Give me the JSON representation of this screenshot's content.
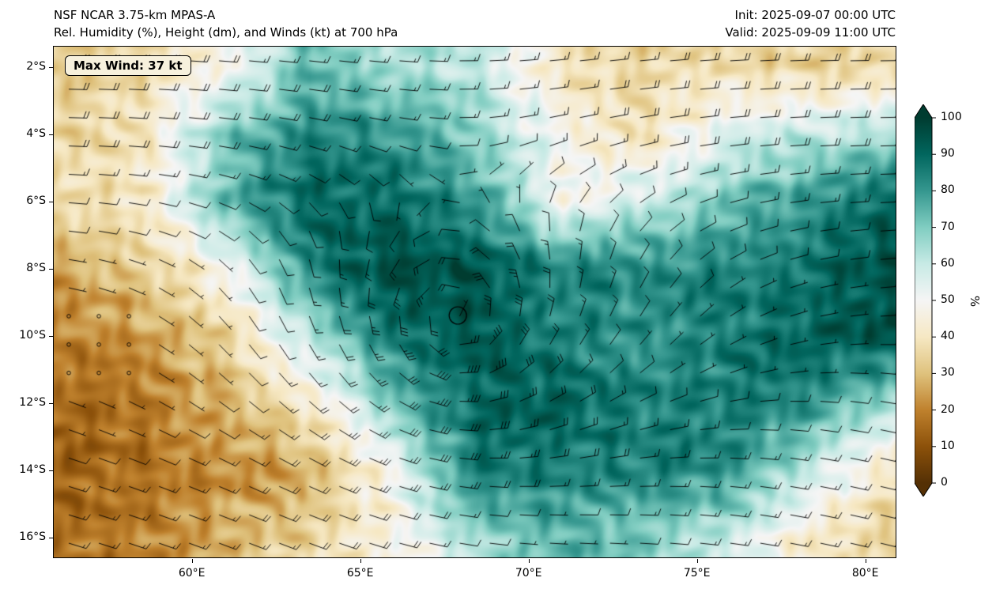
{
  "header": {
    "title_line1": "NSF NCAR 3.75-km MPAS-A",
    "title_line2": "Rel. Humidity (%), Height (dm), and Winds (kt) at 700 hPa",
    "init": "Init: 2025-09-07 00:00 UTC",
    "valid": "Valid: 2025-09-09 11:00 UTC"
  },
  "map": {
    "max_wind_label": "Max Wind: 37 kt",
    "lon_range": [
      55.9,
      80.9
    ],
    "lat_range": [
      -1.4,
      -16.6
    ],
    "x_ticks": [
      {
        "lon": 60,
        "label": "60°E"
      },
      {
        "lon": 65,
        "label": "65°E"
      },
      {
        "lon": 70,
        "label": "70°E"
      },
      {
        "lon": 75,
        "label": "75°E"
      },
      {
        "lon": 80,
        "label": "80°E"
      }
    ],
    "y_ticks": [
      {
        "lat": -2,
        "label": "2°S"
      },
      {
        "lat": -4,
        "label": "4°S"
      },
      {
        "lat": -6,
        "label": "6°S"
      },
      {
        "lat": -8,
        "label": "8°S"
      },
      {
        "lat": -10,
        "label": "10°S"
      },
      {
        "lat": -12,
        "label": "12°S"
      },
      {
        "lat": -14,
        "label": "14°S"
      },
      {
        "lat": -16,
        "label": "16°S"
      }
    ]
  },
  "colorbar": {
    "label": "%",
    "ticks": [
      0,
      10,
      20,
      30,
      40,
      50,
      60,
      70,
      80,
      90,
      100
    ],
    "range": [
      0,
      100
    ],
    "colormap_stops": [
      [
        0.0,
        "#543005"
      ],
      [
        0.1,
        "#8c510a"
      ],
      [
        0.2,
        "#bf812d"
      ],
      [
        0.3,
        "#dfc27d"
      ],
      [
        0.4,
        "#f6e8c3"
      ],
      [
        0.5,
        "#f5f5f5"
      ],
      [
        0.6,
        "#c7eae5"
      ],
      [
        0.7,
        "#80cdc1"
      ],
      [
        0.8,
        "#35978f"
      ],
      [
        0.9,
        "#01665e"
      ],
      [
        1.0,
        "#003c30"
      ]
    ]
  },
  "chart_data": {
    "type": "heatmap",
    "title": "NSF NCAR 3.75-km MPAS-A",
    "subtitle": "Rel. Humidity (%), Height (dm), and Winds (kt) at 700 hPa",
    "init_time": "2025-09-07 00:00 UTC",
    "valid_time": "2025-09-09 11:00 UTC",
    "level_hPa": 700,
    "variable": "Relative Humidity",
    "units": "%",
    "max_wind_kt": 37,
    "lon_range": [
      55.9,
      80.9
    ],
    "lat_range": [
      -16.6,
      -1.4
    ],
    "colorbar_range": [
      0,
      100
    ],
    "colorbar_ticks": [
      0,
      10,
      20,
      30,
      40,
      50,
      60,
      70,
      80,
      90,
      100
    ],
    "rh_grid": {
      "lons": [
        56,
        58.5,
        61,
        63.5,
        66,
        68.5,
        71,
        73.5,
        76,
        78.5,
        81
      ],
      "lats": [
        -2,
        -4,
        -6,
        -8,
        -10,
        -12,
        -14,
        -16
      ],
      "values_pct": [
        [
          35,
          35,
          45,
          75,
          65,
          60,
          40,
          35,
          35,
          35,
          40
        ],
        [
          35,
          40,
          70,
          85,
          80,
          65,
          50,
          40,
          55,
          60,
          65
        ],
        [
          35,
          40,
          75,
          90,
          90,
          80,
          45,
          60,
          75,
          80,
          90
        ],
        [
          25,
          30,
          50,
          85,
          95,
          95,
          85,
          80,
          85,
          90,
          95
        ],
        [
          20,
          25,
          35,
          60,
          85,
          95,
          85,
          80,
          85,
          90,
          95
        ],
        [
          15,
          20,
          25,
          40,
          75,
          90,
          90,
          85,
          85,
          80,
          65
        ],
        [
          15,
          15,
          20,
          30,
          50,
          85,
          85,
          85,
          80,
          60,
          40
        ],
        [
          15,
          20,
          30,
          35,
          45,
          65,
          75,
          70,
          60,
          40,
          30
        ]
      ]
    },
    "wind_model": {
      "type": "sh_cyclonic_vortex_plus_zonal_flow",
      "center_lon": 67.8,
      "center_lat": -9.6,
      "max_wind_kt": 37,
      "rmax_deg": 1.4,
      "outer_exp": 0.6,
      "taper_deg": 8,
      "zonal": {
        "u_base": -6,
        "north_amp": -16,
        "north_lat": -3.2,
        "north_width": 3.2,
        "south_amp": -9,
        "south_lat": -14.8,
        "south_width": 2.6,
        "south_v": 4
      },
      "calm_zones": [
        {
          "lon": 57.5,
          "lat": -10.5,
          "rx": 4.0,
          "ry": 3.0,
          "depth": 0.8
        },
        {
          "lon": 70.5,
          "lat": -16.1,
          "rx": 3.0,
          "ry": 1.6,
          "depth": 0.85
        },
        {
          "lon": 74.5,
          "lat": -10.6,
          "rx": 2.0,
          "ry": 1.2,
          "depth": 0.65
        }
      ]
    },
    "vortex_marker": {
      "lon": 67.9,
      "lat": -9.4,
      "radius_px": 11
    },
    "barb_grid": {
      "cols": 28,
      "rows": 18,
      "full_barb_kt": 10,
      "half_barb_kt": 5,
      "pennant_kt": 50
    }
  }
}
